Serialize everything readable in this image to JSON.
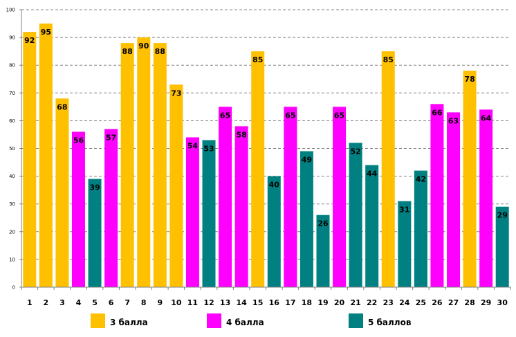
{
  "chart_data": {
    "type": "bar",
    "categories": [
      "1",
      "2",
      "3",
      "4",
      "5",
      "6",
      "7",
      "8",
      "9",
      "10",
      "11",
      "12",
      "13",
      "14",
      "15",
      "16",
      "17",
      "18",
      "19",
      "20",
      "21",
      "22",
      "23",
      "24",
      "25",
      "26",
      "27",
      "28",
      "29",
      "30"
    ],
    "values": [
      92,
      95,
      68,
      56,
      39,
      57,
      88,
      90,
      88,
      73,
      54,
      53,
      65,
      58,
      85,
      40,
      65,
      49,
      26,
      65,
      52,
      44,
      85,
      31,
      42,
      66,
      63,
      78,
      64,
      29
    ],
    "groups": [
      "3 балла",
      "3 балла",
      "3 балла",
      "4 балла",
      "5 баллов",
      "4 балла",
      "3 балла",
      "3 балла",
      "3 балла",
      "3 балла",
      "4 балла",
      "5 баллов",
      "4 балла",
      "4 балла",
      "3 балла",
      "5 баллов",
      "4 балла",
      "5 баллов",
      "5 баллов",
      "4 балла",
      "5 баллов",
      "5 баллов",
      "3 балла",
      "5 баллов",
      "5 баллов",
      "4 балла",
      "4 балла",
      "3 балла",
      "4 балла",
      "5 баллов"
    ],
    "legend": [
      {
        "name": "3 балла",
        "color": "#FFC000"
      },
      {
        "name": "4 балла",
        "color": "#FF00FF"
      },
      {
        "name": "5 баллов",
        "color": "#008080"
      }
    ],
    "yticks": [
      "0",
      "10",
      "20",
      "30",
      "40",
      "50",
      "60",
      "70",
      "80",
      "90",
      "100"
    ],
    "ylim": [
      0,
      100
    ],
    "grid": true,
    "legend_position": "bottom",
    "title": "",
    "xlabel": "",
    "ylabel": ""
  }
}
